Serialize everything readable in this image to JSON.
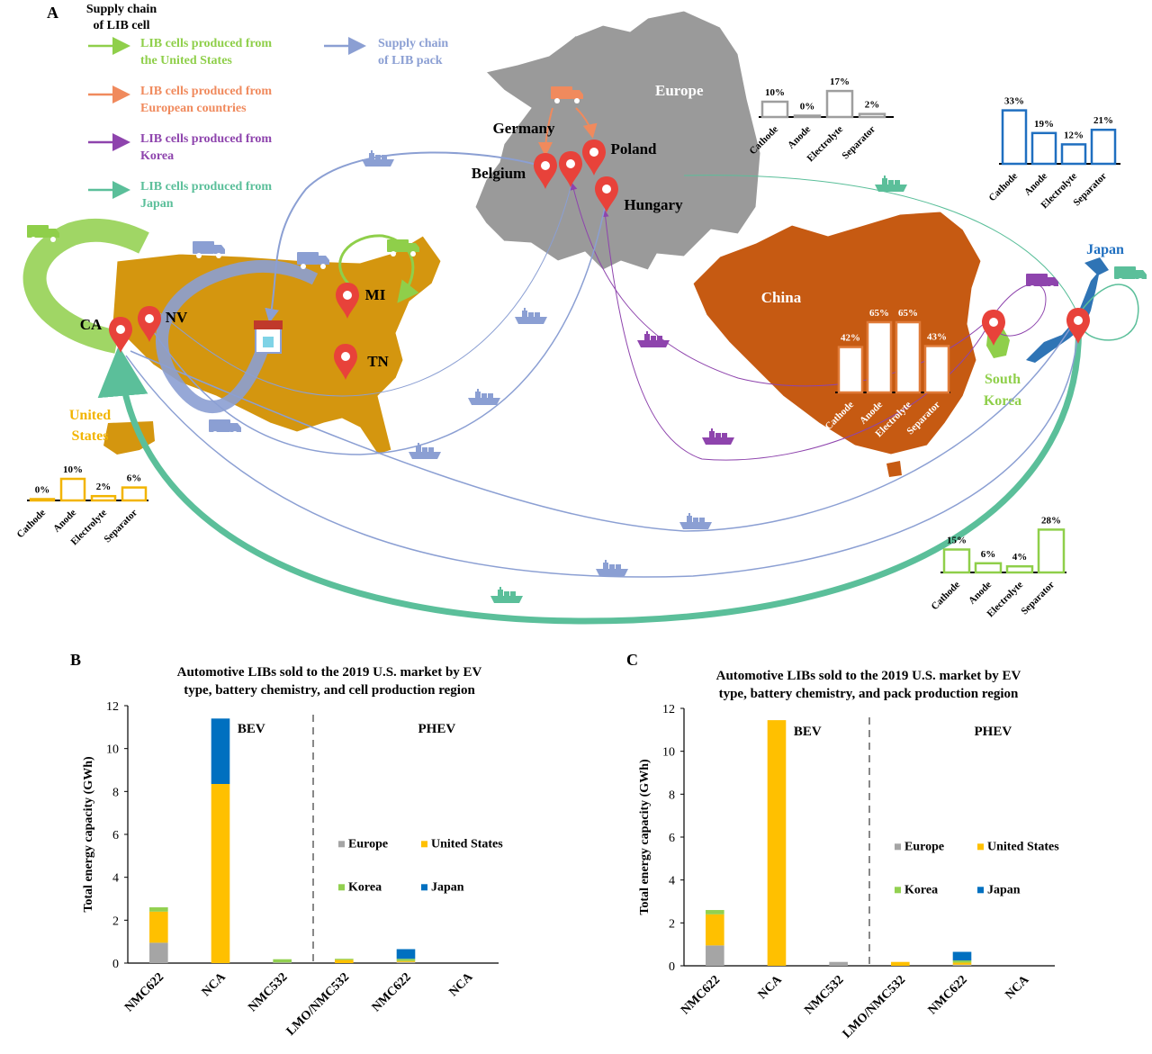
{
  "panel_a": {
    "label": "A",
    "legend": {
      "title_line1": "Supply chain",
      "title_line2": "of LIB cell",
      "items": [
        {
          "line1": "LIB cells produced from",
          "line2": "the United States",
          "color": "#8fcf4a"
        },
        {
          "line1": "LIB cells produced from",
          "line2": "European countries",
          "color": "#f08a5d"
        },
        {
          "line1": "LIB cells produced from",
          "line2": "Korea",
          "color": "#8e44ad"
        },
        {
          "line1": "LIB cells produced from",
          "line2": "Japan",
          "color": "#5bbf9a"
        }
      ],
      "pack": {
        "line1": "Supply chain",
        "line2": "of LIB pack",
        "color": "#8b9fd3"
      }
    },
    "regions": {
      "europe": "Europe",
      "china": "China",
      "japan": "Japan",
      "south_korea_line1": "South",
      "south_korea_line2": "Korea",
      "united_states_line1": "United",
      "united_states_line2": "States"
    },
    "locations": {
      "germany": "Germany",
      "belgium": "Belgium",
      "poland": "Poland",
      "hungary": "Hungary",
      "ca": "CA",
      "nv": "NV",
      "mi": "MI",
      "tn": "TN"
    },
    "material_labels": [
      "Cathode",
      "Anode",
      "Electrolyte",
      "Separator"
    ],
    "mini_charts": [
      {
        "id": "europe",
        "values": [
          10,
          0,
          17,
          2
        ],
        "labels": [
          "10%",
          "0%",
          "17%",
          "2%"
        ],
        "color": "#9e9e9e",
        "fill": "#ffffff"
      },
      {
        "id": "japan",
        "values": [
          33,
          19,
          12,
          21
        ],
        "labels": [
          "33%",
          "19%",
          "12%",
          "21%"
        ],
        "color": "#1f6fc0",
        "fill": "#ffffff"
      },
      {
        "id": "china",
        "values": [
          42,
          65,
          65,
          43
        ],
        "labels": [
          "42%",
          "65%",
          "65%",
          "43%"
        ],
        "color": "#e07b39",
        "fill": "#ffffff"
      },
      {
        "id": "united_states",
        "values": [
          0,
          10,
          2,
          6
        ],
        "labels": [
          "0%",
          "10%",
          "2%",
          "6%"
        ],
        "color": "#f2b400",
        "fill": "#ffffff"
      },
      {
        "id": "korea",
        "values": [
          15,
          6,
          4,
          28
        ],
        "labels": [
          "15%",
          "6%",
          "4%",
          "28%"
        ],
        "color": "#8fcf4a",
        "fill": "#ffffff"
      }
    ],
    "colors": {
      "us_map": "#d4960f",
      "europe_map": "#9a9a9a",
      "china_map": "#c65a12",
      "korea_map": "#8fcf4a",
      "japan_map": "#2f74b5",
      "pin": "#e8423a"
    }
  },
  "chart_data": [
    {
      "panel": "B",
      "type": "bar",
      "stacked": true,
      "title_line1": "Automotive LIBs sold to the 2019 U.S. market by EV",
      "title_line2": "type, battery chemistry, and cell production region",
      "xlabel": "",
      "ylabel": "Total energy capacity (GWh)",
      "ylim": [
        0,
        12
      ],
      "yticks": [
        0,
        2,
        4,
        6,
        8,
        10,
        12
      ],
      "categories": [
        "NMC622",
        "NCA",
        "NMC532",
        "LMO/NMC532",
        "NMC622",
        "NCA"
      ],
      "groups": [
        {
          "label": "BEV",
          "categories": [
            0,
            1,
            2
          ]
        },
        {
          "label": "PHEV",
          "categories": [
            3,
            4,
            5
          ]
        }
      ],
      "series": [
        {
          "name": "Europe",
          "color": "#a5a5a5",
          "values": [
            0.95,
            0,
            0.03,
            0,
            0.05,
            0
          ]
        },
        {
          "name": "United States",
          "color": "#ffc000",
          "values": [
            1.45,
            8.35,
            0,
            0.15,
            0.05,
            0
          ]
        },
        {
          "name": "Korea",
          "color": "#92d050",
          "values": [
            0.2,
            0,
            0.15,
            0.05,
            0.1,
            0
          ]
        },
        {
          "name": "Japan",
          "color": "#0070c0",
          "values": [
            0,
            3.05,
            0,
            0,
            0.45,
            0
          ]
        }
      ],
      "legend": "center-right",
      "grid": false
    },
    {
      "panel": "C",
      "type": "bar",
      "stacked": true,
      "title_line1": "Automotive LIBs sold to the 2019 U.S. market by EV",
      "title_line2": "type, battery chemistry, and pack production region",
      "xlabel": "",
      "ylabel": "Total energy capacity (GWh)",
      "ylim": [
        0,
        12
      ],
      "yticks": [
        0,
        2,
        4,
        6,
        8,
        10,
        12
      ],
      "categories": [
        "NMC622",
        "NCA",
        "NMC532",
        "LMO/NMC532",
        "NMC622",
        "NCA"
      ],
      "groups": [
        {
          "label": "BEV",
          "categories": [
            0,
            1,
            2
          ]
        },
        {
          "label": "PHEV",
          "categories": [
            3,
            4,
            5
          ]
        }
      ],
      "series": [
        {
          "name": "Europe",
          "color": "#a5a5a5",
          "values": [
            0.95,
            0,
            0.18,
            0,
            0.05,
            0
          ]
        },
        {
          "name": "United States",
          "color": "#ffc000",
          "values": [
            1.45,
            11.45,
            0,
            0.18,
            0.1,
            0
          ]
        },
        {
          "name": "Korea",
          "color": "#92d050",
          "values": [
            0.2,
            0,
            0,
            0,
            0.1,
            0
          ]
        },
        {
          "name": "Japan",
          "color": "#0070c0",
          "values": [
            0,
            0,
            0,
            0,
            0.4,
            0
          ]
        }
      ],
      "legend": "center-right",
      "grid": false
    }
  ]
}
